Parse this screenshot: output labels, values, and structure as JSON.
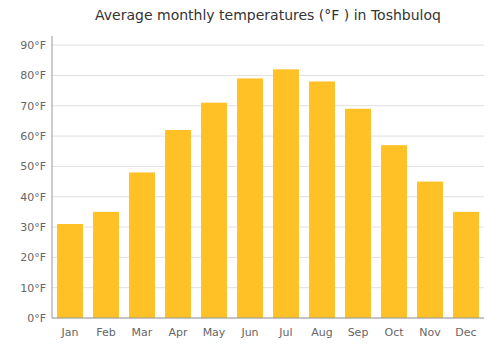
{
  "chart_data": {
    "type": "bar",
    "title": "Average monthly temperatures (°F ) in Toshbuloq",
    "categories": [
      "Jan",
      "Feb",
      "Mar",
      "Apr",
      "May",
      "Jun",
      "Jul",
      "Aug",
      "Sep",
      "Oct",
      "Nov",
      "Dec"
    ],
    "values": [
      31,
      35,
      48,
      62,
      71,
      79,
      82,
      78,
      69,
      57,
      45,
      35
    ],
    "color": "#FFC125",
    "ylim": [
      0,
      93
    ],
    "yticks": [
      {
        "value": 0,
        "label": "0°F"
      },
      {
        "value": 10,
        "label": "10°F"
      },
      {
        "value": 20,
        "label": "20°F"
      },
      {
        "value": 30,
        "label": "30°F"
      },
      {
        "value": 40,
        "label": "40°F"
      },
      {
        "value": 50,
        "label": "50°F"
      },
      {
        "value": 60,
        "label": "60°F"
      },
      {
        "value": 70,
        "label": "70°F"
      },
      {
        "value": 80,
        "label": "80°F"
      },
      {
        "value": 90,
        "label": "90°F"
      }
    ],
    "grid": true
  }
}
